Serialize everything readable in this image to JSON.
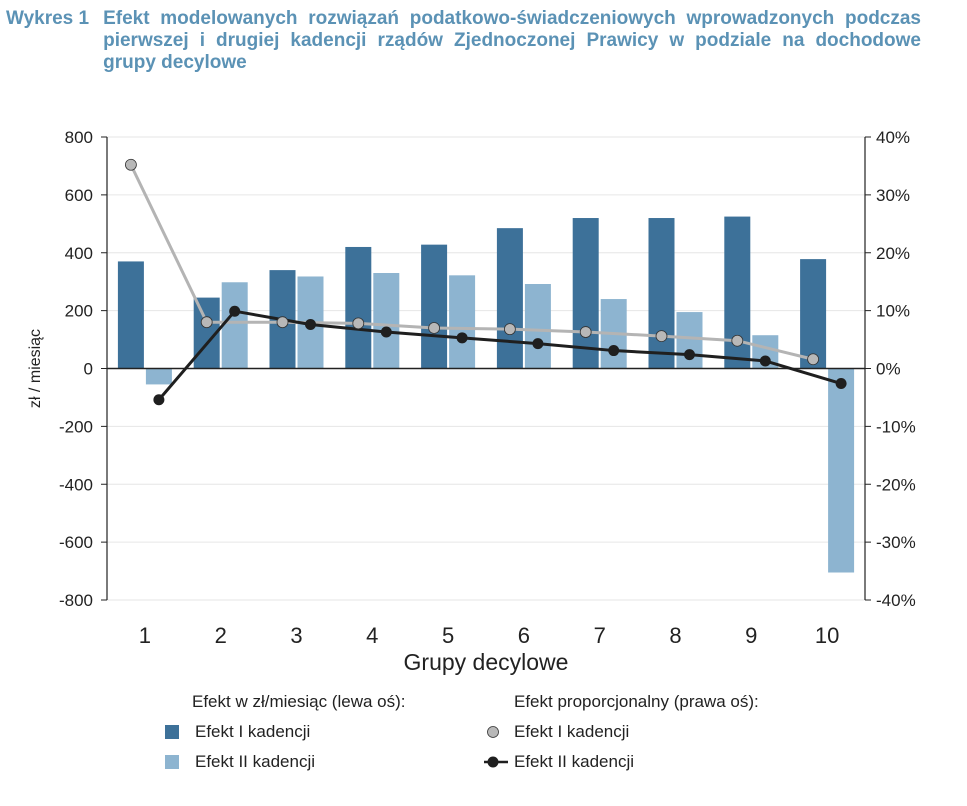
{
  "title": {
    "lead": "Wykres 1",
    "text": "Efekt modelowanych rozwiązań podatkowo-świadczeniowych wprowadzonych podczas pierwszej i drugiej kadencji rządów Zjednoczonej Prawicy w podziale na dochodowe grupy decylowe"
  },
  "colors": {
    "bar_i": "#3d7199",
    "bar_ii": "#8db4d0",
    "line_i": "#b4b4b4",
    "marker_i": "#b8b8b8",
    "line_ii": "#1f1f1f"
  },
  "legend": {
    "left_heading": "Efekt w zł/miesiąc (lewa oś):",
    "right_heading": "Efekt proporcjonalny (prawa oś):",
    "bar_i_label": "Efekt I kadencji",
    "bar_ii_label": "Efekt II kadencji",
    "line_i_label": "Efekt I kadencji",
    "line_ii_label": "Efekt II kadencji"
  },
  "chart_data": {
    "type": "bar",
    "xlabel": "Grupy decylowe",
    "ylabel": "zł / miesiąc",
    "categories": [
      "1",
      "2",
      "3",
      "4",
      "5",
      "6",
      "7",
      "8",
      "9",
      "10"
    ],
    "ylim": [
      -800,
      800
    ],
    "yticks": [
      800,
      600,
      400,
      200,
      0,
      -200,
      -400,
      -600,
      -800
    ],
    "y2lim": [
      -40,
      40
    ],
    "y2ticks": [
      "40%",
      "30%",
      "20%",
      "10%",
      "0%",
      "-10%",
      "-20%",
      "-30%",
      "-40%"
    ],
    "y2tick_values": [
      40,
      30,
      20,
      10,
      0,
      -10,
      -20,
      -30,
      -40
    ],
    "grid": true,
    "bar_series": [
      {
        "name": "Efekt I kadencji",
        "axis": "left",
        "values": [
          370,
          245,
          340,
          420,
          428,
          485,
          520,
          520,
          525,
          378
        ]
      },
      {
        "name": "Efekt II kadencji",
        "axis": "left",
        "values": [
          -55,
          298,
          318,
          330,
          322,
          292,
          240,
          195,
          115,
          -705
        ]
      }
    ],
    "line_series": [
      {
        "name": "Efekt I kadencji",
        "axis": "right",
        "values": [
          35.2,
          8.0,
          8.0,
          7.8,
          7.0,
          6.8,
          6.3,
          5.6,
          4.8,
          1.6
        ]
      },
      {
        "name": "Efekt II kadencji",
        "axis": "right",
        "values": [
          -5.4,
          9.9,
          7.6,
          6.3,
          5.3,
          4.3,
          3.1,
          2.4,
          1.3,
          -2.6
        ]
      }
    ]
  }
}
